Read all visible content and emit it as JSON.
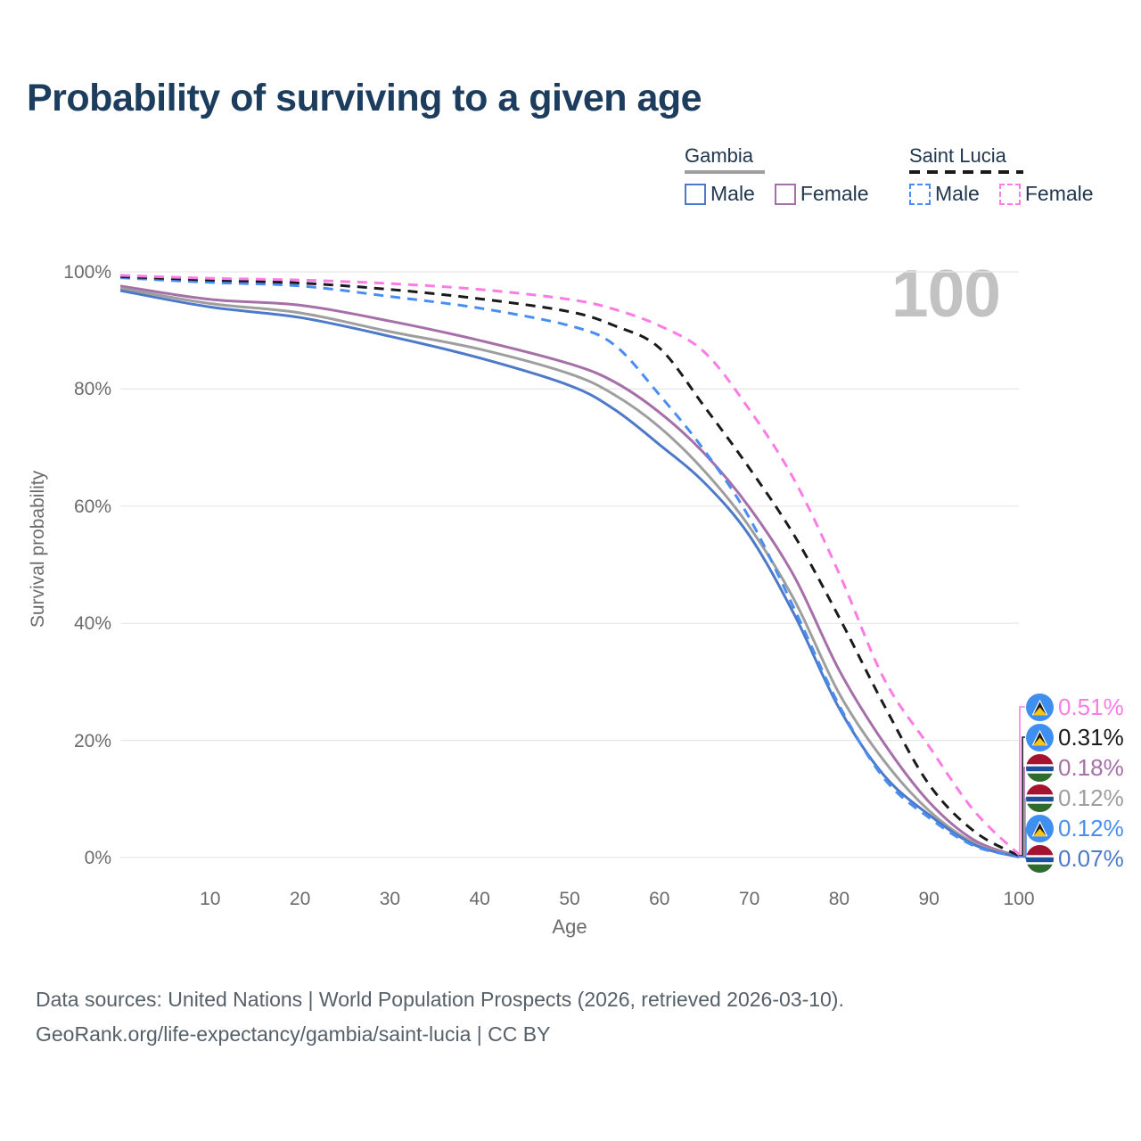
{
  "ui_colors": {
    "title_text": "#1d3d5f",
    "legend_text": "#20374f",
    "axis_text": "#6b6b6b",
    "footer_text": "#566069",
    "watermark_text": "#c2c2c2",
    "gridline": "#e7e7e7"
  },
  "legend": {
    "groups": [
      {
        "title": "Gambia",
        "line_style": "solid",
        "line_color": "#9e9e9e",
        "items": [
          {
            "label": "Male",
            "color": "#4d79c9",
            "style": "solid"
          },
          {
            "label": "Female",
            "color": "#a66fa9",
            "style": "solid"
          }
        ]
      },
      {
        "title": "Saint Lucia",
        "line_style": "dashed",
        "line_color": "#1a1a1a",
        "items": [
          {
            "label": "Male",
            "color": "#4a8df2",
            "style": "dashed"
          },
          {
            "label": "Female",
            "color": "#fb7ce4",
            "style": "dashed"
          }
        ]
      }
    ]
  },
  "chart_data": {
    "type": "line",
    "title": "Probability of surviving to a given age",
    "xlabel": "Age",
    "ylabel": "Survival probability",
    "xlim": [
      0,
      100
    ],
    "ylim": [
      0,
      100
    ],
    "grid": true,
    "legend_position": "top-right",
    "watermark": "100",
    "x_ticks": [
      10,
      20,
      30,
      40,
      50,
      60,
      70,
      80,
      90,
      100
    ],
    "y_ticks": [
      100,
      80,
      60,
      40,
      20,
      0
    ],
    "y_tick_labels": [
      "100%",
      "80%",
      "60%",
      "40%",
      "20%",
      "0%"
    ],
    "ages": [
      0,
      10,
      20,
      30,
      40,
      50,
      55,
      60,
      65,
      70,
      75,
      80,
      85,
      90,
      95,
      100
    ],
    "series": [
      {
        "name": "Saint Lucia Female",
        "country": "Saint Lucia",
        "style": "dashed",
        "color": "#fb7ce4",
        "flag": "saint-lucia",
        "end_label": "0.51%",
        "values": [
          99.4,
          98.9,
          98.6,
          98.0,
          97.0,
          95.3,
          93.6,
          90.8,
          86.3,
          76.5,
          64.5,
          48.5,
          30.5,
          19.0,
          8.0,
          0.51
        ]
      },
      {
        "name": "Saint Lucia Total",
        "country": "Saint Lucia",
        "style": "dashed",
        "color": "#1a1a1a",
        "flag": "saint-lucia",
        "end_label": "0.31%",
        "values": [
          99.2,
          98.6,
          98.1,
          97.0,
          95.4,
          93.2,
          90.8,
          87.0,
          77.0,
          66.5,
          55.0,
          41.0,
          26.0,
          12.5,
          4.5,
          0.31
        ]
      },
      {
        "name": "Gambia Female",
        "country": "Gambia",
        "style": "solid",
        "color": "#a66fa9",
        "flag": "gambia",
        "end_label": "0.18%",
        "values": [
          97.6,
          95.3,
          94.3,
          91.6,
          88.3,
          84.3,
          81.2,
          76.0,
          69.0,
          59.8,
          48.0,
          32.0,
          19.5,
          9.5,
          3.0,
          0.18
        ]
      },
      {
        "name": "Gambia Total",
        "country": "Gambia",
        "style": "solid",
        "color": "#9e9e9e",
        "flag": "gambia",
        "end_label": "0.12%",
        "values": [
          97.2,
          94.6,
          93.0,
          89.8,
          86.8,
          82.6,
          79.0,
          73.5,
          66.0,
          56.5,
          44.0,
          28.0,
          16.5,
          8.0,
          2.5,
          0.12
        ]
      },
      {
        "name": "Saint Lucia Male",
        "country": "Saint Lucia",
        "style": "dashed",
        "color": "#4a8df2",
        "flag": "saint-lucia",
        "end_label": "0.12%",
        "values": [
          99.0,
          98.2,
          97.6,
          95.8,
          93.8,
          90.8,
          87.5,
          79.0,
          69.5,
          58.0,
          42.5,
          26.0,
          13.5,
          6.8,
          2.0,
          0.12
        ]
      },
      {
        "name": "Gambia Male",
        "country": "Gambia",
        "style": "solid",
        "color": "#4d79c9",
        "flag": "gambia",
        "end_label": "0.07%",
        "values": [
          96.8,
          94.0,
          92.2,
          89.0,
          85.3,
          80.6,
          76.5,
          70.5,
          64.0,
          55.0,
          41.5,
          25.5,
          14.0,
          7.3,
          2.2,
          0.07
        ]
      }
    ]
  },
  "footer": {
    "line1": "Data sources: United Nations | World Population Prospects (2026, retrieved 2026-03-10).",
    "line2": "GeoRank.org/life-expectancy/gambia/saint-lucia | CC BY"
  }
}
